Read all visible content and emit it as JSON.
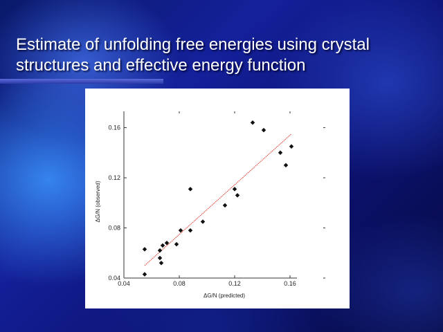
{
  "slide": {
    "title": "Estimate of unfolding free energies using crystal structures and effective energy function"
  },
  "colors": {
    "background": "#14209a",
    "title_text": "#ffffff",
    "accent_bar": "#4858c8",
    "fit_line": "#e0301e",
    "points": "#111111"
  },
  "chart_data": {
    "type": "scatter",
    "title": "",
    "xlabel": "ΔG/N (predicted)",
    "ylabel": "ΔG/N (observed)",
    "xlim": [
      0.04,
      0.165
    ],
    "ylim": [
      0.04,
      0.173
    ],
    "xticks": [
      0.04,
      0.08,
      0.12,
      0.16
    ],
    "xtick_labels": [
      "0.04",
      "0.08",
      "0.12",
      "0.16"
    ],
    "yticks": [
      0.04,
      0.08,
      0.12,
      0.16
    ],
    "ytick_labels": [
      "0.04",
      "0.08",
      "0.12",
      "0.16"
    ],
    "grid": false,
    "series": [
      {
        "points": [
          {
            "x": 0.055,
            "y": 0.043
          },
          {
            "x": 0.055,
            "y": 0.063
          },
          {
            "x": 0.066,
            "y": 0.056
          },
          {
            "x": 0.067,
            "y": 0.052
          },
          {
            "x": 0.066,
            "y": 0.062
          },
          {
            "x": 0.068,
            "y": 0.066
          },
          {
            "x": 0.071,
            "y": 0.068
          },
          {
            "x": 0.078,
            "y": 0.067
          },
          {
            "x": 0.081,
            "y": 0.078
          },
          {
            "x": 0.088,
            "y": 0.078
          },
          {
            "x": 0.088,
            "y": 0.111
          },
          {
            "x": 0.097,
            "y": 0.085
          },
          {
            "x": 0.113,
            "y": 0.098
          },
          {
            "x": 0.12,
            "y": 0.111
          },
          {
            "x": 0.122,
            "y": 0.106
          },
          {
            "x": 0.133,
            "y": 0.164
          },
          {
            "x": 0.141,
            "y": 0.158
          },
          {
            "x": 0.153,
            "y": 0.14
          },
          {
            "x": 0.157,
            "y": 0.13
          },
          {
            "x": 0.161,
            "y": 0.145
          }
        ]
      }
    ],
    "fit_line": {
      "x": [
        0.055,
        0.161
      ],
      "y": [
        0.05,
        0.155
      ]
    }
  }
}
